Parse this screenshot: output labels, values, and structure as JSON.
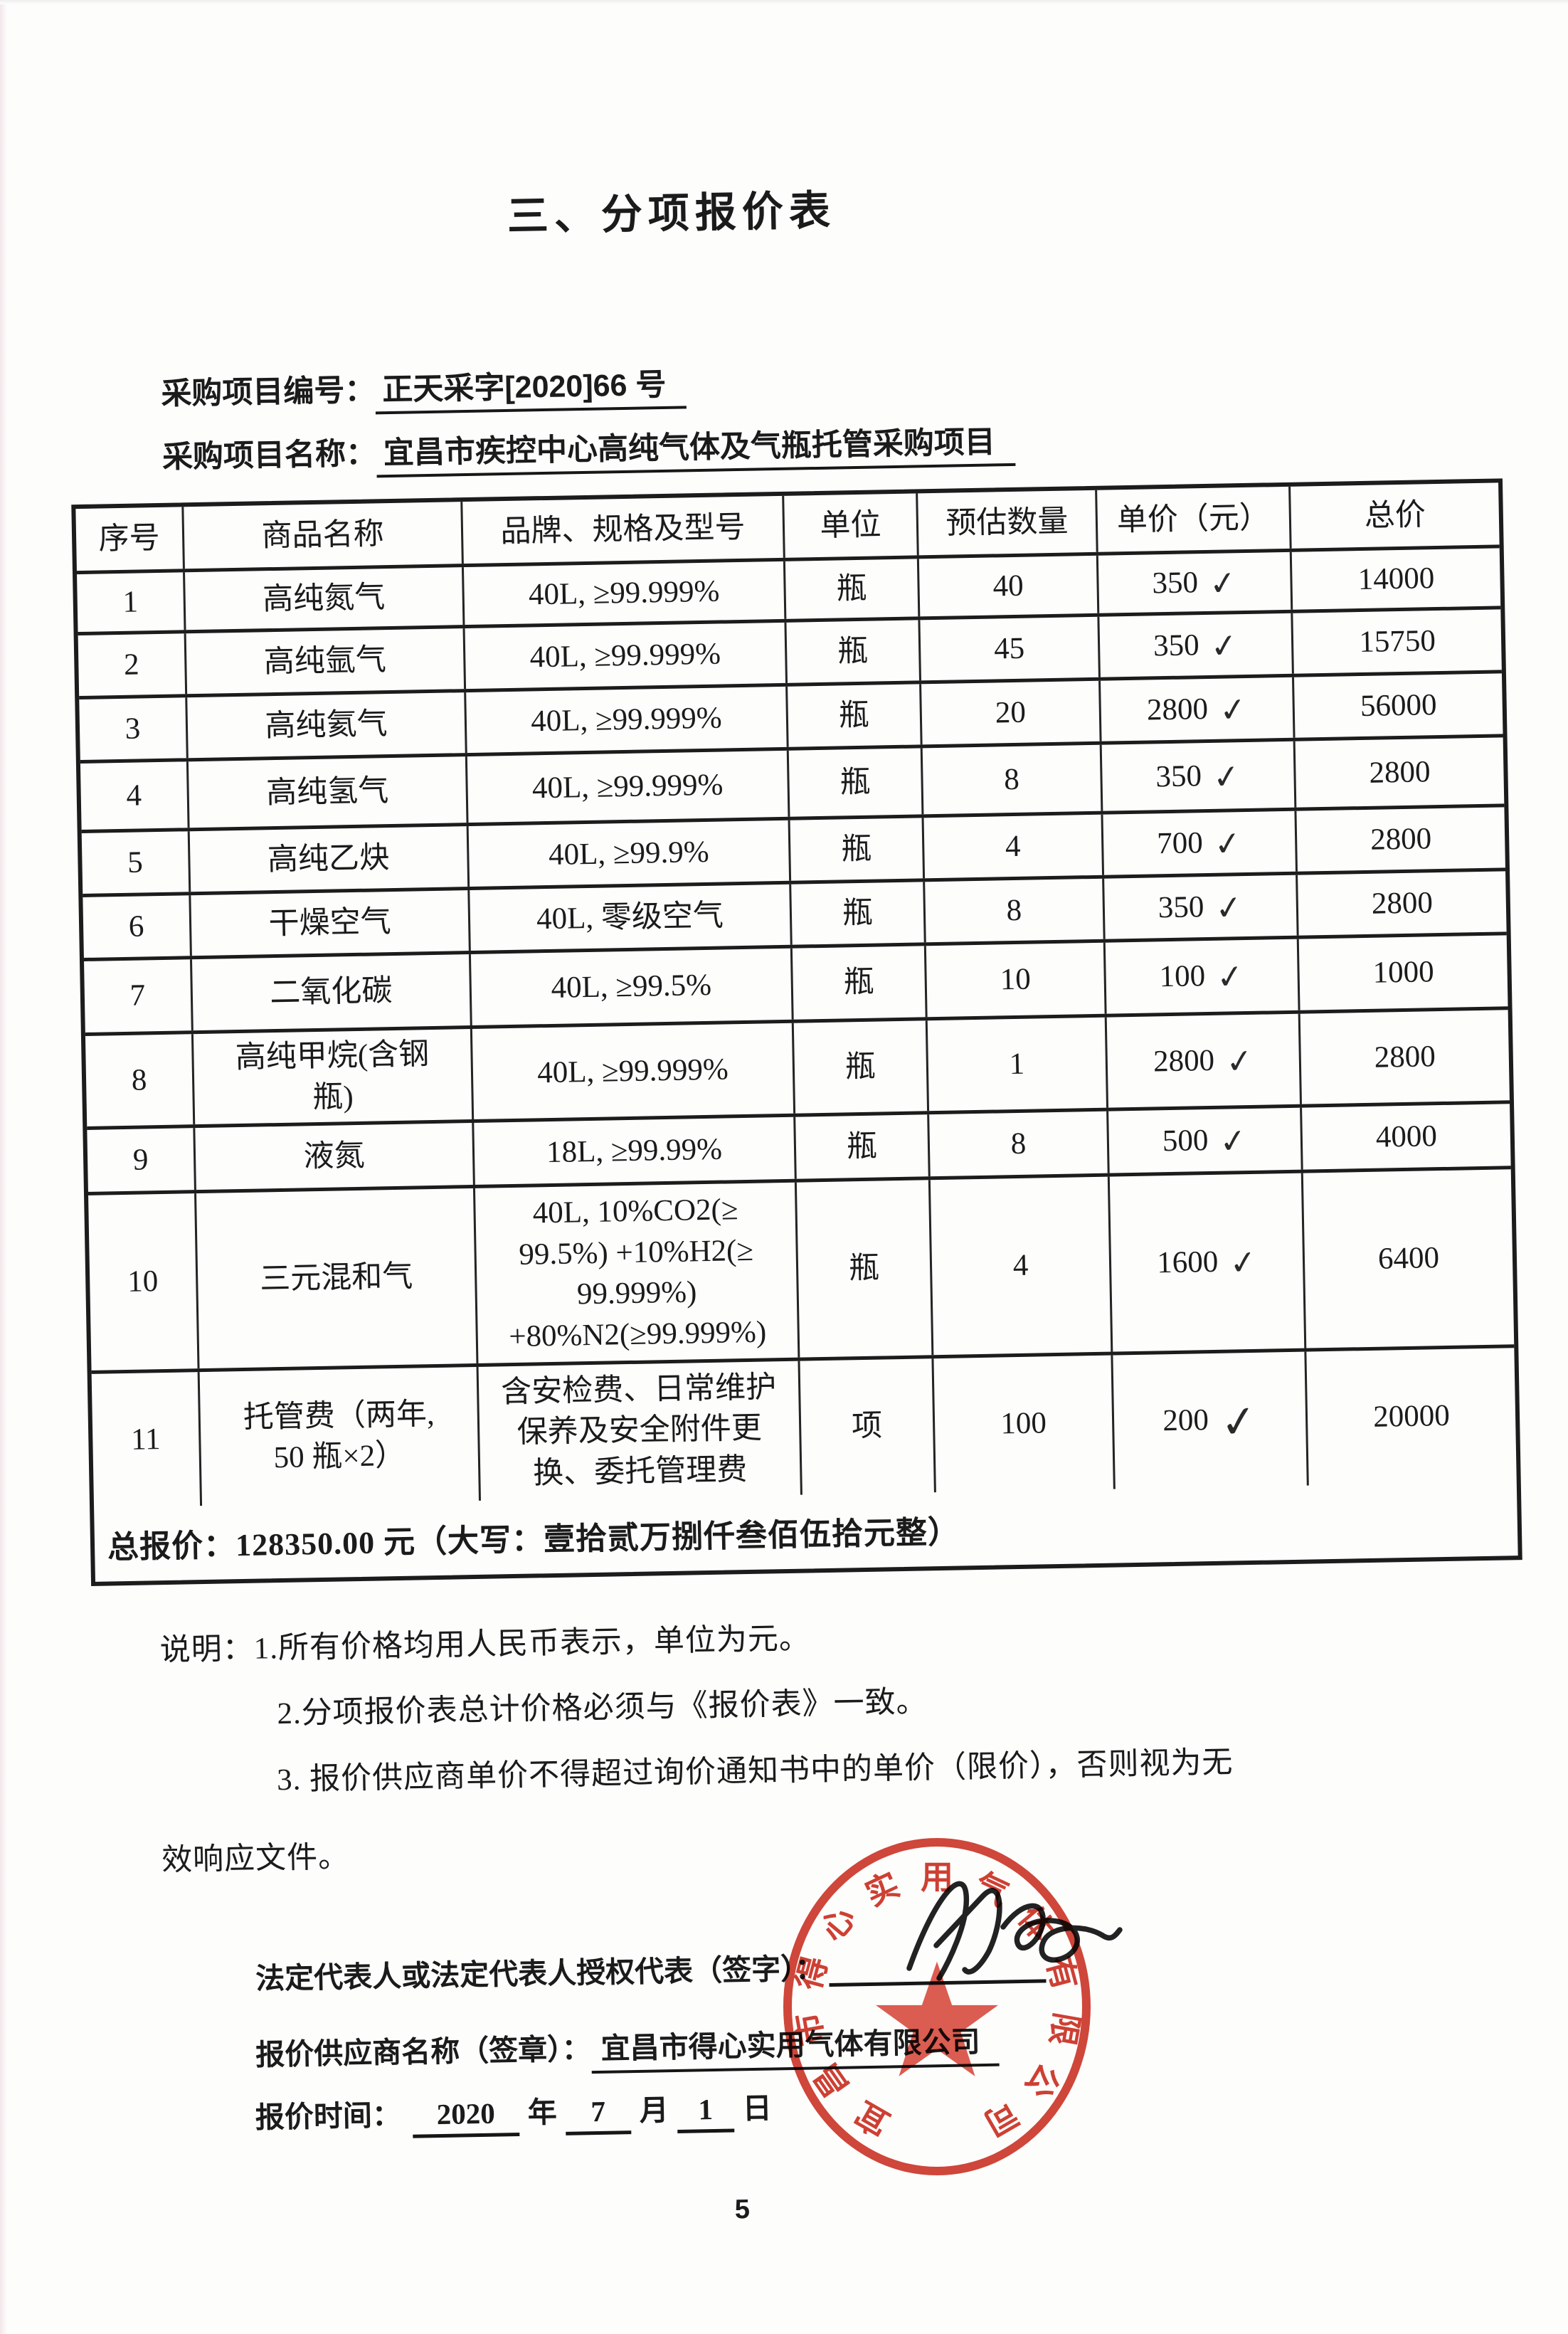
{
  "page": {
    "title": "三、分项报价表",
    "page_number": "5"
  },
  "project": {
    "number_label": "采购项目编号：",
    "number_value": "正天采字[2020]66 号",
    "name_label": "采购项目名称：",
    "name_value": "宜昌市疾控中心高纯气体及气瓶托管采购项目"
  },
  "table": {
    "headers": [
      "序号",
      "商品名称",
      "品牌、规格及型号",
      "单位",
      "预估数量",
      "单价（元）",
      "总价"
    ],
    "check_mark": "✓",
    "rows": [
      {
        "no": "1",
        "name": "高纯氮气",
        "spec": "40L, ≥99.999%",
        "unit": "瓶",
        "qty": "40",
        "price": "350",
        "checked": true,
        "total": "14000"
      },
      {
        "no": "2",
        "name": "高纯氩气",
        "spec": "40L, ≥99.999%",
        "unit": "瓶",
        "qty": "45",
        "price": "350",
        "checked": true,
        "total": "15750"
      },
      {
        "no": "3",
        "name": "高纯氦气",
        "spec": "40L, ≥99.999%",
        "unit": "瓶",
        "qty": "20",
        "price": "2800",
        "checked": true,
        "total": "56000"
      },
      {
        "no": "4",
        "name": "高纯氢气",
        "spec": "40L, ≥99.999%",
        "unit": "瓶",
        "qty": "8",
        "price": "350",
        "checked": true,
        "total": "2800"
      },
      {
        "no": "5",
        "name": "高纯乙炔",
        "spec": "40L, ≥99.9%",
        "unit": "瓶",
        "qty": "4",
        "price": "700",
        "checked": true,
        "total": "2800"
      },
      {
        "no": "6",
        "name": "干燥空气",
        "spec": "40L, 零级空气",
        "unit": "瓶",
        "qty": "8",
        "price": "350",
        "checked": true,
        "total": "2800"
      },
      {
        "no": "7",
        "name": "二氧化碳",
        "spec": "40L, ≥99.5%",
        "unit": "瓶",
        "qty": "10",
        "price": "100",
        "checked": true,
        "total": "1000"
      },
      {
        "no": "8",
        "name": "高纯甲烷(含钢\n瓶)",
        "spec": "40L, ≥99.999%",
        "unit": "瓶",
        "qty": "1",
        "price": "2800",
        "checked": true,
        "total": "2800"
      },
      {
        "no": "9",
        "name": "液氮",
        "spec": "18L, ≥99.99%",
        "unit": "瓶",
        "qty": "8",
        "price": "500",
        "checked": true,
        "total": "4000"
      },
      {
        "no": "10",
        "name": "三元混和气",
        "spec": "40L, 10%CO2(≥\n99.5%) +10%H2(≥\n99.999%)\n+80%N2(≥99.999%)",
        "unit": "瓶",
        "qty": "4",
        "price": "1600",
        "checked": true,
        "total": "6400"
      },
      {
        "no": "11",
        "name": "托管费（两年,\n50 瓶×2）",
        "spec": "含安检费、日常维护\n保养及安全附件更\n换、委托管理费",
        "unit": "项",
        "qty": "100",
        "price": "200",
        "checked": true,
        "total": "20000"
      }
    ],
    "total_row": "总报价：128350.00 元（大写：壹拾贰万捌仟叁佰伍拾元整）"
  },
  "notes": {
    "line1": "说明：1.所有价格均用人民币表示，单位为元。",
    "line2": "2.分项报价表总计价格必须与《报价表》一致。",
    "line3": "3. 报价供应商单价不得超过询价通知书中的单价（限价），否则视为无",
    "line4": "效响应文件。"
  },
  "signature": {
    "rep_label": "法定代表人或法定代表人授权代表（签字）：",
    "supplier_label": "报价供应商名称（签章）：",
    "supplier_value": "宜昌市得心实用气体有限公司",
    "time_label": "报价时间：",
    "year": "2020",
    "year_unit": "年",
    "month": "7",
    "month_unit": "月",
    "day": "1",
    "day_unit": "日"
  },
  "stamp": {
    "ring_text": "宜昌市得心实用气体有限公司",
    "color": "#cd3629"
  }
}
